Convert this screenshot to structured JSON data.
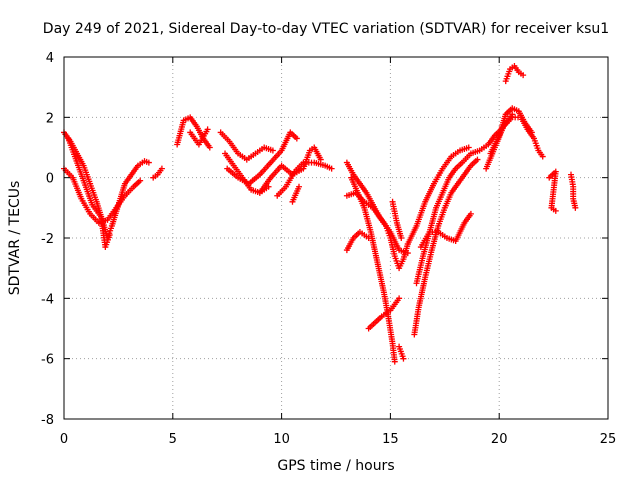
{
  "chart_data": {
    "type": "scatter",
    "title": "Day 249 of 2021, Sidereal Day-to-day VTEC variation (SDTVAR) for receiver ksu1",
    "xlabel": "GPS time / hours",
    "ylabel": "SDTVAR / TECUs",
    "xlim": [
      0,
      25
    ],
    "ylim": [
      -8,
      4
    ],
    "xticks": [
      0,
      5,
      10,
      15,
      20,
      25
    ],
    "yticks": [
      -8,
      -6,
      -4,
      -2,
      0,
      2,
      4
    ],
    "grid": true,
    "marker": "plus",
    "color": "#ff0000",
    "traces": [
      [
        [
          0.0,
          1.5
        ],
        [
          0.3,
          1.2
        ],
        [
          0.6,
          0.8
        ],
        [
          0.9,
          0.4
        ],
        [
          1.2,
          -0.2
        ],
        [
          1.5,
          -0.8
        ],
        [
          1.8,
          -1.5
        ],
        [
          2.0,
          -2.0
        ],
        [
          2.2,
          -1.6
        ],
        [
          2.5,
          -0.9
        ],
        [
          2.8,
          -0.2
        ],
        [
          3.1,
          0.1
        ],
        [
          3.4,
          0.4
        ],
        [
          3.7,
          0.55
        ],
        [
          3.9,
          0.5
        ]
      ],
      [
        [
          0.0,
          0.3
        ],
        [
          0.4,
          0.0
        ],
        [
          0.8,
          -0.7
        ],
        [
          1.2,
          -1.2
        ],
        [
          1.6,
          -1.5
        ],
        [
          2.0,
          -1.4
        ],
        [
          2.4,
          -1.0
        ],
        [
          2.8,
          -0.6
        ],
        [
          3.2,
          -0.3
        ],
        [
          3.5,
          -0.1
        ]
      ],
      [
        [
          0.2,
          1.3
        ],
        [
          0.5,
          0.7
        ],
        [
          0.9,
          -0.1
        ],
        [
          1.3,
          -0.9
        ],
        [
          1.7,
          -1.3
        ],
        [
          1.9,
          -2.3
        ],
        [
          2.1,
          -1.9
        ]
      ],
      [
        [
          4.1,
          0.0
        ],
        [
          4.3,
          0.1
        ],
        [
          4.5,
          0.3
        ]
      ],
      [
        [
          5.2,
          1.1
        ],
        [
          5.5,
          1.9
        ],
        [
          5.8,
          2.0
        ],
        [
          6.1,
          1.7
        ],
        [
          6.4,
          1.3
        ],
        [
          6.7,
          1.0
        ]
      ],
      [
        [
          5.8,
          1.5
        ],
        [
          6.2,
          1.1
        ],
        [
          6.6,
          1.6
        ]
      ],
      [
        [
          7.2,
          1.5
        ],
        [
          7.6,
          1.2
        ],
        [
          8.0,
          0.8
        ],
        [
          8.4,
          0.6
        ],
        [
          8.8,
          0.8
        ],
        [
          9.2,
          1.0
        ],
        [
          9.6,
          0.9
        ]
      ],
      [
        [
          7.4,
          0.8
        ],
        [
          7.8,
          0.4
        ],
        [
          8.2,
          0.0
        ],
        [
          8.6,
          -0.4
        ],
        [
          9.0,
          -0.5
        ],
        [
          9.4,
          -0.3
        ]
      ],
      [
        [
          7.5,
          0.3
        ],
        [
          8.0,
          0.0
        ],
        [
          8.5,
          -0.2
        ],
        [
          9.0,
          0.1
        ],
        [
          9.5,
          0.5
        ],
        [
          10.0,
          0.9
        ],
        [
          10.4,
          1.5
        ],
        [
          10.7,
          1.3
        ]
      ],
      [
        [
          9.0,
          -0.5
        ],
        [
          9.5,
          0.0
        ],
        [
          10.0,
          0.4
        ],
        [
          10.5,
          0.1
        ],
        [
          11.0,
          0.3
        ],
        [
          11.3,
          0.9
        ],
        [
          11.5,
          1.0
        ],
        [
          11.8,
          0.6
        ]
      ],
      [
        [
          9.8,
          -0.6
        ],
        [
          10.2,
          -0.3
        ],
        [
          10.6,
          0.2
        ],
        [
          11.0,
          0.5
        ],
        [
          11.5,
          0.5
        ],
        [
          12.0,
          0.4
        ],
        [
          12.3,
          0.3
        ]
      ],
      [
        [
          10.5,
          -0.8
        ],
        [
          10.8,
          -0.3
        ]
      ],
      [
        [
          13.0,
          0.5
        ],
        [
          13.3,
          0.1
        ],
        [
          13.6,
          -0.2
        ],
        [
          13.9,
          -0.5
        ],
        [
          14.2,
          -0.9
        ],
        [
          14.5,
          -1.3
        ],
        [
          14.8,
          -1.6
        ],
        [
          15.0,
          -2.0
        ],
        [
          15.2,
          -2.6
        ],
        [
          15.4,
          -3.0
        ],
        [
          15.6,
          -2.7
        ],
        [
          15.8,
          -2.2
        ]
      ],
      [
        [
          13.2,
          0.0
        ],
        [
          13.5,
          -0.5
        ],
        [
          13.8,
          -1.0
        ],
        [
          14.1,
          -1.8
        ],
        [
          14.4,
          -2.8
        ],
        [
          14.7,
          -3.8
        ],
        [
          14.9,
          -4.6
        ],
        [
          15.1,
          -5.5
        ],
        [
          15.2,
          -6.1
        ]
      ],
      [
        [
          13.0,
          -0.6
        ],
        [
          13.4,
          -0.5
        ],
        [
          13.8,
          -0.8
        ],
        [
          14.2,
          -1.0
        ],
        [
          14.6,
          -1.4
        ],
        [
          15.0,
          -1.8
        ],
        [
          15.4,
          -2.4
        ],
        [
          15.8,
          -2.5
        ]
      ],
      [
        [
          13.0,
          -2.4
        ],
        [
          13.3,
          -2.0
        ],
        [
          13.6,
          -1.8
        ],
        [
          14.0,
          -2.0
        ]
      ],
      [
        [
          14.0,
          -5.0
        ],
        [
          14.3,
          -4.8
        ],
        [
          14.6,
          -4.6
        ],
        [
          15.0,
          -4.4
        ],
        [
          15.4,
          -4.0
        ]
      ],
      [
        [
          15.4,
          -5.6
        ],
        [
          15.6,
          -6.0
        ]
      ],
      [
        [
          15.1,
          -0.8
        ],
        [
          15.3,
          -1.5
        ],
        [
          15.5,
          -2.0
        ]
      ],
      [
        [
          16.1,
          -5.2
        ],
        [
          16.3,
          -4.3
        ],
        [
          16.6,
          -3.3
        ],
        [
          16.9,
          -2.4
        ],
        [
          17.2,
          -1.6
        ],
        [
          17.5,
          -1.0
        ],
        [
          17.8,
          -0.5
        ],
        [
          18.1,
          -0.2
        ],
        [
          18.4,
          0.1
        ],
        [
          18.7,
          0.4
        ],
        [
          19.0,
          0.6
        ]
      ],
      [
        [
          16.2,
          -3.5
        ],
        [
          16.5,
          -2.6
        ],
        [
          16.8,
          -1.8
        ],
        [
          17.1,
          -1.0
        ],
        [
          17.4,
          -0.5
        ],
        [
          17.7,
          0.0
        ],
        [
          18.0,
          0.3
        ],
        [
          18.3,
          0.5
        ],
        [
          18.7,
          0.8
        ],
        [
          19.1,
          0.9
        ],
        [
          19.5,
          1.1
        ],
        [
          19.8,
          1.4
        ],
        [
          20.1,
          1.6
        ],
        [
          20.4,
          1.9
        ],
        [
          20.6,
          2.1
        ]
      ],
      [
        [
          15.8,
          -2.2
        ],
        [
          16.2,
          -1.6
        ],
        [
          16.6,
          -0.8
        ],
        [
          17.0,
          -0.2
        ],
        [
          17.4,
          0.3
        ],
        [
          17.8,
          0.7
        ],
        [
          18.2,
          0.9
        ],
        [
          18.6,
          1.0
        ]
      ],
      [
        [
          16.4,
          -2.3
        ],
        [
          16.8,
          -1.8
        ],
        [
          17.2,
          -1.8
        ],
        [
          17.6,
          -2.0
        ],
        [
          18.0,
          -2.1
        ],
        [
          18.4,
          -1.5
        ],
        [
          18.7,
          -1.2
        ]
      ],
      [
        [
          19.4,
          0.3
        ],
        [
          19.8,
          1.0
        ],
        [
          20.2,
          1.7
        ],
        [
          20.6,
          2.0
        ],
        [
          21.0,
          2.0
        ],
        [
          21.3,
          1.6
        ],
        [
          21.6,
          1.3
        ],
        [
          21.8,
          0.9
        ],
        [
          22.0,
          0.7
        ]
      ],
      [
        [
          19.6,
          0.8
        ],
        [
          20.0,
          1.4
        ],
        [
          20.3,
          2.1
        ],
        [
          20.6,
          2.3
        ],
        [
          20.9,
          2.2
        ],
        [
          21.2,
          1.8
        ],
        [
          21.5,
          1.5
        ]
      ],
      [
        [
          20.3,
          3.2
        ],
        [
          20.5,
          3.6
        ],
        [
          20.7,
          3.7
        ],
        [
          20.9,
          3.5
        ],
        [
          21.1,
          3.4
        ]
      ],
      [
        [
          22.3,
          0.0
        ],
        [
          22.6,
          0.2
        ],
        [
          22.4,
          -1.0
        ],
        [
          22.6,
          -1.1
        ]
      ],
      [
        [
          23.3,
          0.1
        ],
        [
          23.4,
          -0.3
        ],
        [
          23.4,
          -0.7
        ],
        [
          23.5,
          -1.0
        ]
      ]
    ]
  }
}
